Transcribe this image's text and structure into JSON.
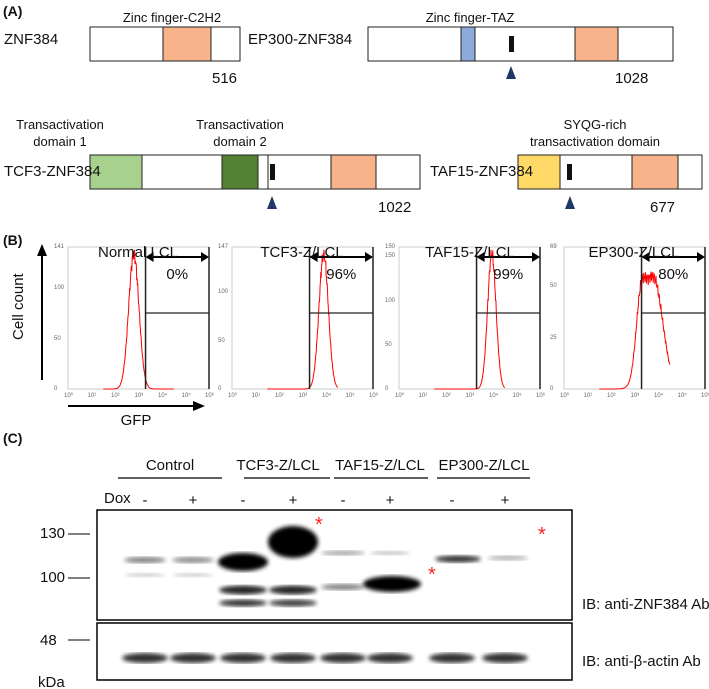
{
  "panel_a": {
    "label": "(A)",
    "constructs": [
      {
        "name": "ZNF384",
        "length": "516",
        "domain_label": "Zinc finger-C2H2"
      },
      {
        "name": "EP300-ZNF384",
        "length": "1028",
        "domain_label": "Zinc finger-TAZ"
      },
      {
        "name": "TCF3-ZNF384",
        "length": "1022",
        "domain_label_1": "Transactivation",
        "domain_label_1b": "domain 1",
        "domain_label_2": "Transactivation",
        "domain_label_2b": "domain 2"
      },
      {
        "name": "TAF15-ZNF384",
        "length": "677",
        "domain_label": "SYQG-rich",
        "domain_label_b": "transactivation domain"
      }
    ],
    "colors": {
      "zinc_finger": "#f7b48a",
      "taz": "#8ea9db",
      "td1": "#a9d18e",
      "td2": "#548235",
      "syqg": "#ffd966"
    }
  },
  "panel_b": {
    "label": "(B)",
    "ylabel": "Cell count",
    "xlabel": "GFP",
    "x_ticks": [
      "10⁰",
      "10¹",
      "10²",
      "10³",
      "10⁴",
      "10⁵",
      "10⁶"
    ],
    "plots": [
      {
        "title": "Normal LCL",
        "percent": "0%",
        "ymax": "141",
        "yticks": [
          "0",
          "50",
          "100"
        ],
        "peak_log": 2.8,
        "width": 0.22
      },
      {
        "title": "TCF3-Z/LCL",
        "percent": "96%",
        "ymax": "147",
        "yticks": [
          "0",
          "50",
          "100"
        ],
        "peak_log": 3.9,
        "width": 0.2
      },
      {
        "title": "TAF15-Z/LCL",
        "percent": "99%",
        "ymax": "150",
        "yticks": [
          "0",
          "50",
          "100",
          "150"
        ],
        "peak_log": 3.95,
        "width": 0.18
      },
      {
        "title": "EP300-Z/LCL",
        "percent": "80%",
        "ymax": "69",
        "yticks": [
          "0",
          "25",
          "50"
        ],
        "peak_log": 3.8,
        "width": 0.4
      }
    ],
    "gate_log": 3.3
  },
  "panel_c": {
    "label": "(C)",
    "dox_label": "Dox",
    "groups": [
      "Control",
      "TCF3-Z/LCL",
      "TAF15-Z/LCL",
      "EP300-Z/LCL"
    ],
    "dox": [
      "-",
      "+",
      "-",
      "+",
      "-",
      "+",
      "-",
      "+"
    ],
    "markers": [
      "130",
      "100",
      "48"
    ],
    "unit": "kDa",
    "asterisk": "*",
    "ib_top": "IB: anti-ZNF384 Ab",
    "ib_bottom": "IB: anti-β-actin Ab",
    "asterisk_color": "#ff2020"
  }
}
